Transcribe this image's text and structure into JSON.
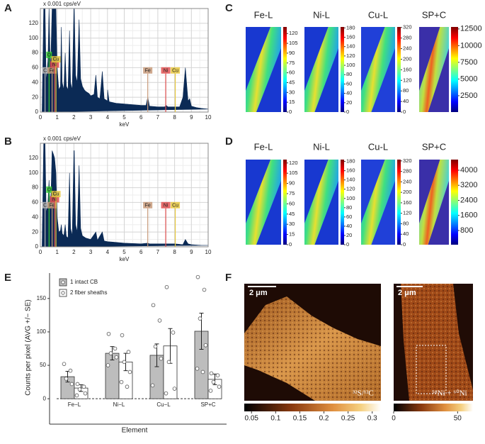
{
  "panel_labels": [
    "A",
    "B",
    "C",
    "D",
    "E",
    "F"
  ],
  "spectra": [
    {
      "ylabel": "x 0.001 cps/eV",
      "xlabel": "keV",
      "xlim": [
        0,
        10
      ],
      "ylim": [
        0,
        140
      ],
      "xticks": [
        0,
        1,
        2,
        3,
        4,
        5,
        6,
        7,
        8,
        9,
        10
      ],
      "yticks": [
        0,
        20,
        40,
        60,
        80,
        100,
        120
      ],
      "grid": true,
      "color": "#0b2a55",
      "x": [
        0.1,
        0.2,
        0.28,
        0.35,
        0.45,
        0.52,
        0.6,
        0.7,
        0.78,
        0.85,
        0.93,
        1.0,
        1.1,
        1.2,
        1.25,
        1.3,
        1.4,
        1.48,
        1.55,
        1.65,
        1.74,
        1.8,
        1.9,
        2.0,
        2.02,
        2.1,
        2.2,
        2.31,
        2.4,
        2.5,
        2.62,
        2.7,
        2.9,
        3.0,
        3.2,
        3.31,
        3.4,
        3.55,
        3.69,
        3.8,
        4.0,
        4.01,
        4.1,
        4.5,
        5.0,
        5.5,
        6.0,
        6.3,
        6.4,
        6.5,
        7.0,
        7.4,
        7.5,
        7.6,
        8.0,
        8.3,
        8.5,
        8.64,
        8.8,
        8.9,
        9.0,
        9.3,
        9.6,
        10
      ],
      "y": [
        0,
        140,
        140,
        40,
        70,
        140,
        50,
        140,
        140,
        140,
        140,
        60,
        30,
        35,
        115,
        40,
        30,
        80,
        35,
        30,
        110,
        40,
        30,
        140,
        140,
        50,
        40,
        125,
        45,
        35,
        30,
        28,
        25,
        22,
        24,
        50,
        20,
        18,
        55,
        18,
        15,
        30,
        14,
        12,
        11,
        10,
        9,
        9,
        20,
        8,
        7,
        7,
        9,
        7,
        7,
        7,
        20,
        60,
        15,
        18,
        8,
        6,
        5,
        4
      ],
      "markers": [
        {
          "label": "C",
          "x": 0.28,
          "color": "#bbbbbb"
        },
        {
          "label": "O",
          "x": 0.52,
          "color": "#33cc33"
        },
        {
          "label": "Fe",
          "x": 0.7,
          "color": "#c89a7a"
        },
        {
          "label": "Ni",
          "x": 0.85,
          "color": "#e05050"
        },
        {
          "label": "Cu",
          "x": 0.93,
          "color": "#e8c840"
        },
        {
          "label": "Fe",
          "x": 6.4,
          "color": "#c89a7a"
        },
        {
          "label": "Ni",
          "x": 7.47,
          "color": "#e05050"
        },
        {
          "label": "Cu",
          "x": 8.04,
          "color": "#e8c840"
        }
      ]
    },
    {
      "ylabel": "x 0.001 cps/eV",
      "xlabel": "keV",
      "xlim": [
        0,
        10
      ],
      "ylim": [
        0,
        140
      ],
      "xticks": [
        0,
        1,
        2,
        3,
        4,
        5,
        6,
        7,
        8,
        9,
        10
      ],
      "yticks": [
        0,
        20,
        40,
        60,
        80,
        100,
        120
      ],
      "grid": true,
      "color": "#0b2a55",
      "x": [
        0.1,
        0.2,
        0.28,
        0.35,
        0.45,
        0.52,
        0.6,
        0.7,
        0.78,
        0.85,
        0.93,
        1.0,
        1.1,
        1.2,
        1.25,
        1.3,
        1.4,
        1.48,
        1.55,
        1.65,
        1.74,
        1.8,
        1.9,
        2.0,
        2.02,
        2.1,
        2.2,
        2.31,
        2.4,
        2.5,
        2.7,
        3.0,
        3.31,
        3.4,
        3.69,
        3.8,
        4.0,
        4.5,
        5.0,
        6.0,
        6.4,
        6.5,
        7.0,
        7.5,
        8.0,
        8.5,
        8.64,
        8.8,
        9.0,
        9.6,
        10
      ],
      "y": [
        0,
        140,
        140,
        45,
        60,
        90,
        40,
        130,
        125,
        120,
        100,
        40,
        20,
        22,
        30,
        18,
        15,
        30,
        14,
        12,
        100,
        25,
        15,
        130,
        130,
        30,
        20,
        110,
        25,
        15,
        12,
        10,
        20,
        9,
        20,
        8,
        7,
        6,
        5,
        4,
        5,
        4,
        4,
        4,
        4,
        3,
        10,
        4,
        3,
        2,
        2
      ],
      "markers": [
        {
          "label": "C",
          "x": 0.28,
          "color": "#bbbbbb"
        },
        {
          "label": "O",
          "x": 0.52,
          "color": "#33cc33"
        },
        {
          "label": "Fe",
          "x": 0.7,
          "color": "#c89a7a"
        },
        {
          "label": "Ni",
          "x": 0.85,
          "color": "#e05050"
        },
        {
          "label": "Cu",
          "x": 0.93,
          "color": "#e8c840"
        },
        {
          "label": "Fe",
          "x": 6.4,
          "color": "#c89a7a"
        },
        {
          "label": "Ni",
          "x": 7.47,
          "color": "#e05050"
        },
        {
          "label": "Cu",
          "x": 8.04,
          "color": "#e8c840"
        }
      ]
    }
  ],
  "maps": [
    [
      {
        "title": "Fe-L",
        "clim": [
          0,
          130
        ],
        "ticks": [
          0,
          15,
          30,
          45,
          60,
          75,
          90,
          105,
          120
        ]
      },
      {
        "title": "Ni-L",
        "clim": [
          0,
          182
        ],
        "ticks": [
          0,
          20,
          40,
          60,
          80,
          100,
          120,
          140,
          160,
          180
        ]
      },
      {
        "title": "Cu-L",
        "clim": [
          0,
          322
        ],
        "ticks": [
          0,
          40,
          80,
          120,
          160,
          200,
          240,
          280,
          320
        ]
      },
      {
        "title": "SP+C",
        "clim": [
          50,
          12800
        ],
        "ticks": [
          2500,
          5000,
          7500,
          10000,
          12500
        ]
      }
    ],
    [
      {
        "title": "Fe-L",
        "clim": [
          0,
          125
        ],
        "ticks": [
          0,
          15,
          30,
          45,
          60,
          75,
          90,
          105,
          120
        ]
      },
      {
        "title": "Ni-L",
        "clim": [
          0,
          184
        ],
        "ticks": [
          0,
          20,
          40,
          60,
          80,
          100,
          120,
          140,
          160,
          180
        ]
      },
      {
        "title": "Cu-L",
        "clim": [
          0,
          325
        ],
        "ticks": [
          0,
          40,
          80,
          120,
          160,
          200,
          240,
          280,
          320
        ]
      },
      {
        "title": "SP+C",
        "clim": [
          47,
          4565
        ],
        "ticks": [
          800,
          1600,
          2400,
          3200,
          4000
        ]
      }
    ]
  ],
  "chart_data": {
    "type": "bar",
    "xlabel": "Element",
    "ylabel": "Counts per pixel (AVG +/− SE)",
    "categories": [
      "Fe−L",
      "Ni−L",
      "Cu−L",
      "SP+C"
    ],
    "ylim": [
      -38,
      188
    ],
    "yticks": [
      0,
      50,
      100,
      150
    ],
    "series": [
      {
        "name": "1 intact CB",
        "color": "#bdbdbd",
        "values": [
          33,
          68,
          65,
          101
        ],
        "errors": [
          8,
          10,
          17,
          27
        ],
        "points": [
          [
            52,
            42,
            30,
            22
          ],
          [
            97,
            75,
            68,
            62,
            50
          ],
          [
            140,
            117,
            78,
            60,
            20
          ],
          [
            182,
            163,
            120,
            80,
            45,
            40
          ]
        ]
      },
      {
        "name": "2 fiber sheaths",
        "color": "#ffffff",
        "values": [
          16,
          55,
          79,
          29
        ],
        "errors": [
          5,
          13,
          26,
          8
        ],
        "points": [
          [
            22,
            18,
            14,
            8,
            5
          ],
          [
            95,
            70,
            55,
            40,
            25,
            18
          ],
          [
            167,
            99,
            55,
            15,
            8
          ],
          [
            38,
            35,
            25,
            18,
            12
          ]
        ]
      }
    ]
  },
  "images": [
    {
      "scale_bar": "2 μm",
      "label": "³²S/¹²C",
      "clim": [
        0.035,
        0.318
      ],
      "ticks": [
        0.05,
        0.1,
        0.15,
        0.2,
        0.25,
        0.3
      ]
    },
    {
      "scale_bar": "2 μm",
      "label": "⁵⁸Ni + ⁶⁰Ni",
      "clim": [
        0,
        62
      ],
      "ticks": [
        0,
        50
      ]
    }
  ]
}
